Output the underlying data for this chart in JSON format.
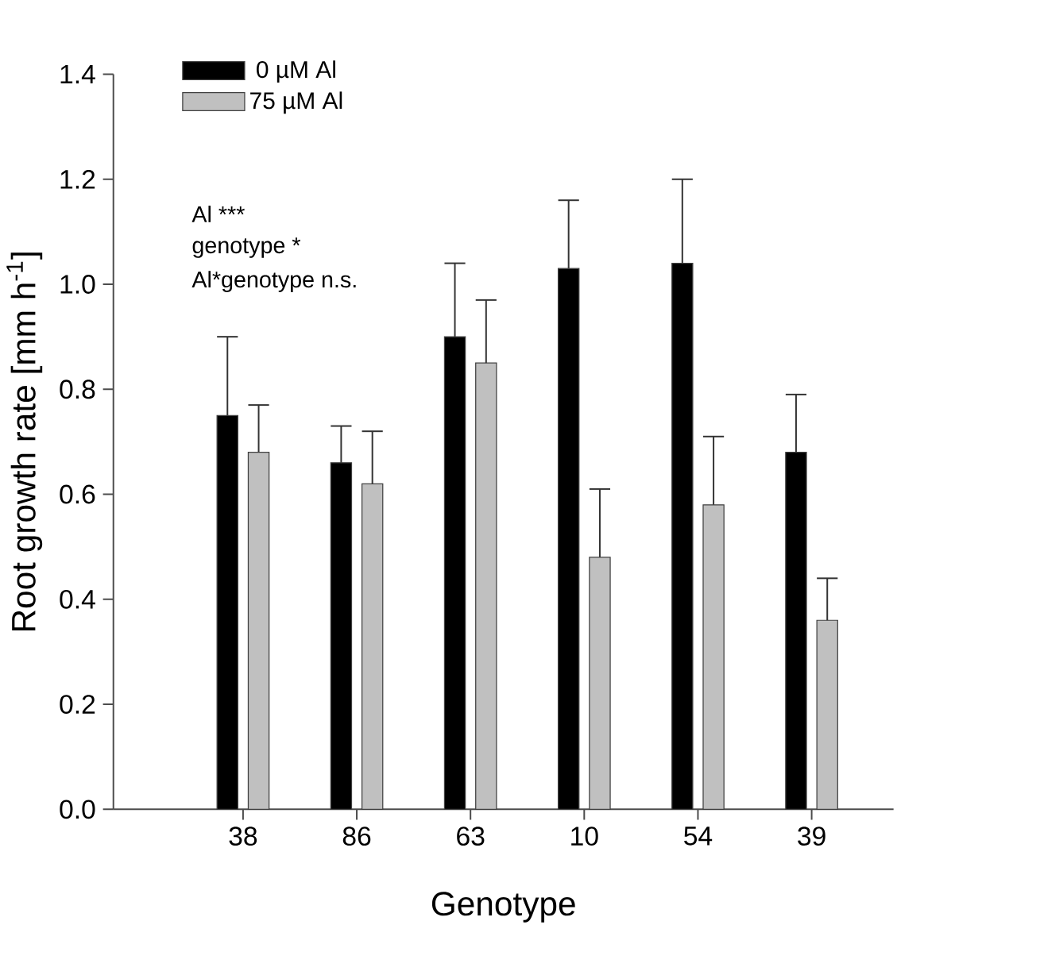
{
  "chart_data": {
    "type": "bar",
    "xlabel": "Genotype",
    "ylabel": "Root growth rate [mm h$^{-1}$]",
    "categories": [
      "38",
      "86",
      "63",
      "10",
      "54",
      "39"
    ],
    "series": [
      {
        "name": "0 µM Al",
        "color": "#000000",
        "values": [
          0.75,
          0.66,
          0.9,
          1.03,
          1.04,
          0.68
        ],
        "errors": [
          [
            0.75,
            0.9
          ],
          [
            0.66,
            0.73
          ],
          [
            0.9,
            1.04
          ],
          [
            1.03,
            1.16
          ],
          [
            1.04,
            1.2
          ],
          [
            0.68,
            0.79
          ]
        ]
      },
      {
        "name": "75 µM Al",
        "color": "#c0c0c0",
        "values": [
          0.68,
          0.62,
          0.85,
          0.48,
          0.58,
          0.36
        ],
        "errors": [
          [
            0.68,
            0.77
          ],
          [
            0.62,
            0.72
          ],
          [
            0.85,
            0.97
          ],
          [
            0.48,
            0.61
          ],
          [
            0.58,
            0.71
          ],
          [
            0.36,
            0.44
          ]
        ]
      }
    ],
    "ylim": [
      0,
      1.4
    ],
    "yticks": [
      {
        "value": 0,
        "label": "0.0"
      },
      {
        "value": 0.2,
        "label": "0.2"
      },
      {
        "value": 0.4,
        "label": "0.4"
      },
      {
        "value": 0.6,
        "label": "0.6"
      },
      {
        "value": 0.8,
        "label": "0.8"
      },
      {
        "value": 1.0,
        "label": "1.0"
      },
      {
        "value": 1.2,
        "label": "1.2"
      },
      {
        "value": 1.4,
        "label": "1.4"
      }
    ],
    "annotations": [
      "Al ***",
      "genotype *",
      "Al*genotype n.s."
    ],
    "legend": "top left"
  }
}
